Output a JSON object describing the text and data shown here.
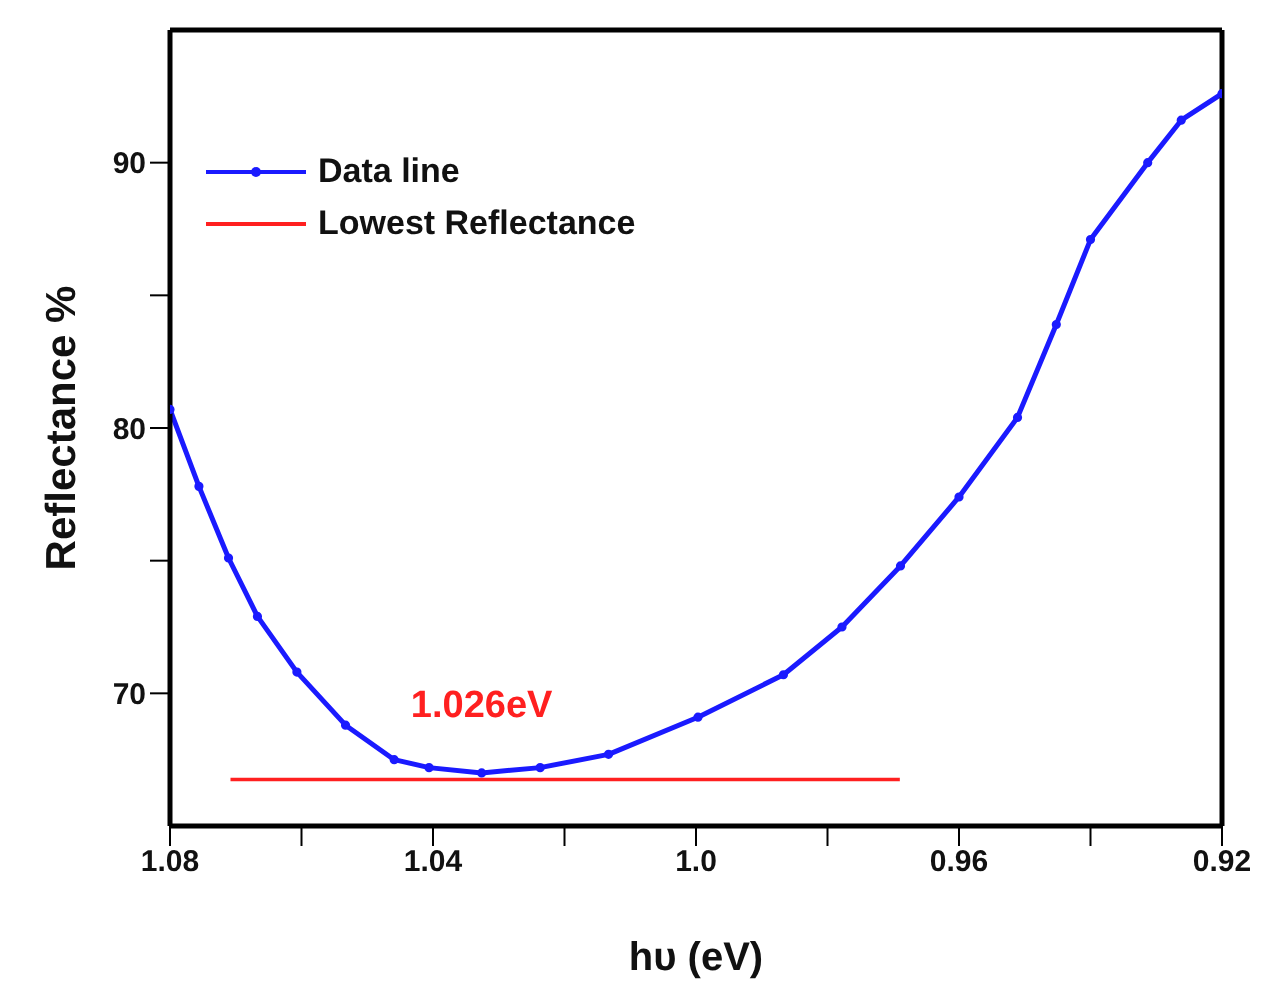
{
  "chart_data": {
    "type": "line",
    "xlabel": "hυ (eV)",
    "ylabel": "Reflectance %",
    "xlim": [
      1.08,
      0.92
    ],
    "ylim": [
      65,
      95
    ],
    "xticks": [
      1.08,
      {
        "value": 1.06,
        "label": null
      },
      1.04,
      {
        "value": 1.02,
        "label": null
      },
      {
        "value": 1.0,
        "label": "1.0"
      },
      {
        "value": 0.98,
        "label": null
      },
      0.96,
      {
        "value": 0.94,
        "label": null
      },
      0.92
    ],
    "yticks": [
      {
        "value": 75,
        "label": null
      },
      70,
      80,
      {
        "value": 85,
        "label": null
      },
      90
    ],
    "legend": "top left",
    "series": [
      {
        "name": "Data line",
        "color": "#1a1aff",
        "marker": "circle",
        "x": [
          1.08,
          1.0756,
          1.0711,
          1.0667,
          1.0607,
          1.0533,
          1.0459,
          1.0406,
          1.0326,
          1.0237,
          1.0133,
          0.9997,
          0.9867,
          0.9778,
          0.9689,
          0.96,
          0.9511,
          0.9452,
          0.94,
          0.9313,
          0.9262,
          0.92
        ],
        "values": [
          80.7,
          77.8,
          75.1,
          72.9,
          70.8,
          68.8,
          67.5,
          67.2,
          67.0,
          67.2,
          67.7,
          69.1,
          70.7,
          72.5,
          74.8,
          77.4,
          80.4,
          83.9,
          87.1,
          90.0,
          91.6,
          92.6
        ]
      },
      {
        "name": "Lowest Reflectance",
        "color": "#ff2020",
        "marker": "none",
        "x": [
          1.0708,
          0.969
        ],
        "values": [
          66.75,
          66.75
        ]
      }
    ],
    "annotations": [
      "1.026eV"
    ]
  }
}
